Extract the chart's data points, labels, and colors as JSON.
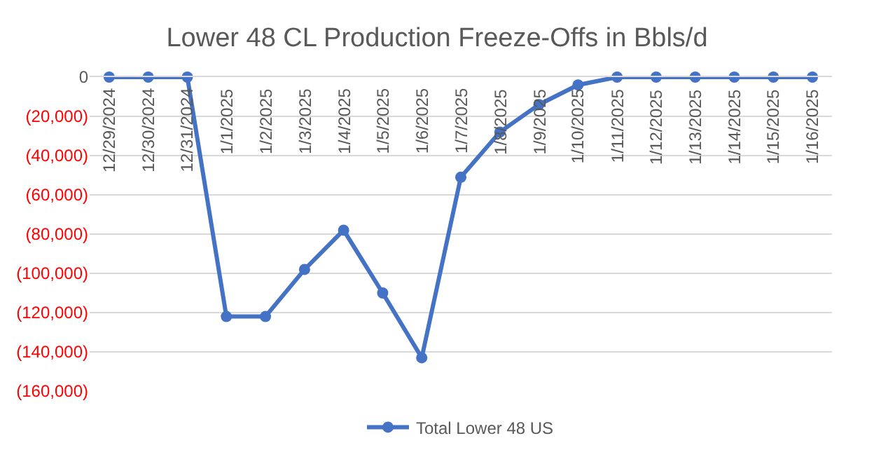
{
  "chart_data": {
    "type": "line",
    "title": "Lower 48 CL Production Freeze-Offs in Bbls/d",
    "categories": [
      "12/29/2024",
      "12/30/2024",
      "12/31/2024",
      "1/1/2025",
      "1/2/2025",
      "1/3/2025",
      "1/4/2025",
      "1/5/2025",
      "1/6/2025",
      "1/7/2025",
      "1/8/2025",
      "1/9/2025",
      "1/10/2025",
      "1/11/2025",
      "1/12/2025",
      "1/13/2025",
      "1/14/2025",
      "1/15/2025",
      "1/16/2025"
    ],
    "series": [
      {
        "name": "Total Lower 48 US",
        "color": "#4472c4",
        "values": [
          0,
          0,
          0,
          -122000,
          -122000,
          -98000,
          -78000,
          -110000,
          -143000,
          -51000,
          -28000,
          -14000,
          -4000,
          0,
          0,
          0,
          0,
          0,
          0
        ]
      }
    ],
    "ylim": [
      -160000,
      0
    ],
    "yticks": [
      {
        "value": -160000,
        "label": "(160,000)"
      },
      {
        "value": -140000,
        "label": "(140,000)"
      },
      {
        "value": -120000,
        "label": "(120,000)"
      },
      {
        "value": -100000,
        "label": "(100,000)"
      },
      {
        "value": -80000,
        "label": "(80,000)"
      },
      {
        "value": -60000,
        "label": "(60,000)"
      },
      {
        "value": -40000,
        "label": "(40,000)"
      },
      {
        "value": -20000,
        "label": "(20,000)"
      },
      0
    ],
    "grid": "y",
    "legend": "bottom",
    "marker": "circle",
    "line_style": "solid"
  }
}
